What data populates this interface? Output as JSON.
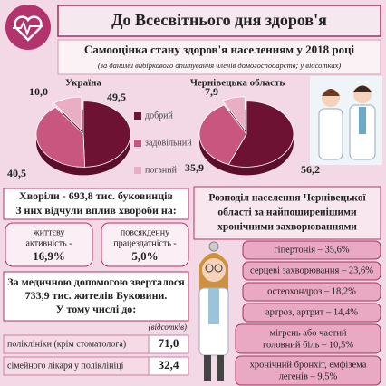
{
  "header": {
    "title": "До Всесвітнього дня здоров'я"
  },
  "survey": {
    "title": "Самооцінка стану здоров'я населенням у 2018 році",
    "note": "(за даними вибіркового опитування членів домогосподарств; у відсотках)"
  },
  "legend": {
    "categories": [
      "добрий",
      "задовільний",
      "поганий"
    ],
    "colors": [
      "#6e1233",
      "#c9567f",
      "#eaaec4"
    ]
  },
  "chart_data": [
    {
      "type": "pie",
      "title": "Україна",
      "values": [
        49.5,
        40.5,
        10.0
      ],
      "value_labels": [
        "49,5",
        "40,5",
        "10,0"
      ]
    },
    {
      "type": "pie",
      "title": "Чернівецька область",
      "values": [
        56.2,
        35.9,
        7.9
      ],
      "value_labels": [
        "56,2",
        "35,9",
        "7,9"
      ]
    }
  ],
  "illness": {
    "lines": [
      "Хворіли - 693,8 тис. буковинців",
      "З них відчули вплив хвороби на:"
    ],
    "boxes": [
      {
        "lines": [
          "життєву",
          "активність -"
        ],
        "value": "16,9%"
      },
      {
        "lines": [
          "повсякденну",
          "працездатність -"
        ],
        "value": "5,0%"
      }
    ]
  },
  "medical": {
    "lines": [
      "За медичною допомогою зверталося",
      "733,9 тис. жителів Буковини.",
      "У тому числі до:"
    ],
    "unit": "(відсотків)",
    "rows": [
      [
        "поліклініки (крім стоматолога)",
        "71,0"
      ],
      [
        "сімейного лікаря у поліклініці",
        "32,4"
      ]
    ]
  },
  "chronic": {
    "lines": [
      "Розподіл населення Чернівецької",
      "області за найпоширенішими",
      "хронічними захворюваннями"
    ],
    "items": [
      [
        "гіпертонія – 35,6%"
      ],
      [
        "серцеві захворювання – 23,6%"
      ],
      [
        "остеохондроз – 18,2%"
      ],
      [
        "артроз, артрит – 14,4%"
      ],
      [
        "мігрень або частий",
        "головний біль – 10,5%"
      ],
      [
        "хронічний бронхіт, емфізема",
        "легенів – 9,5%"
      ]
    ]
  }
}
